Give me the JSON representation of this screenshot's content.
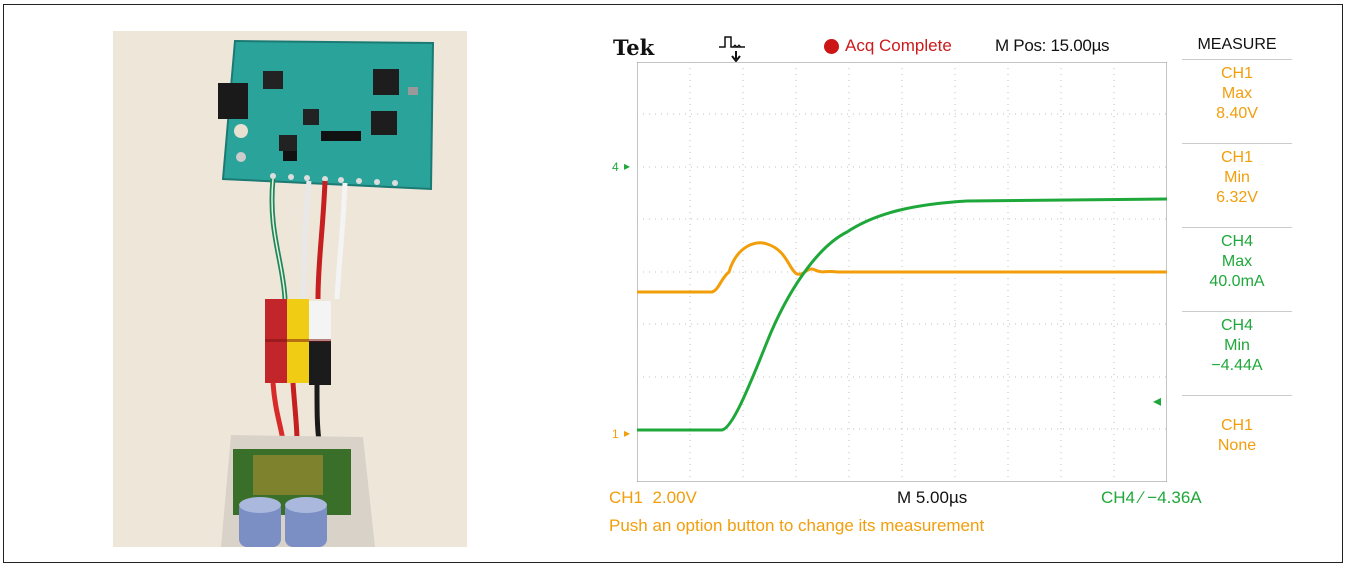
{
  "scope": {
    "brand": "Tek",
    "status": "Acq Complete",
    "mpos": "M Pos: 15.00µs",
    "measure_title": "MEASURE",
    "measurements": [
      {
        "ch": "CH1",
        "type": "Max",
        "value": "8.40V",
        "color": "#f29e0b"
      },
      {
        "ch": "CH1",
        "type": "Min",
        "value": "6.32V",
        "color": "#f29e0b"
      },
      {
        "ch": "CH4",
        "type": "Max",
        "value": "40.0mA",
        "color": "#1fa83a"
      },
      {
        "ch": "CH4",
        "type": "Min",
        "value": "−4.44A",
        "color": "#1fa83a"
      },
      {
        "ch": "CH1",
        "type": "None",
        "value": "",
        "color": "#f29e0b"
      }
    ],
    "ch1_scale": "CH1  2.00V",
    "timebase": "M 5.00µs",
    "ch4_trigger": "CH4 ∕ −4.36A",
    "message": "Push an option button to change its measurement",
    "ch4_marker": "4",
    "ch1_marker": "1",
    "colors": {
      "ch1": "#f29e0b",
      "ch4": "#1fa83a",
      "status": "#cc1515"
    }
  }
}
